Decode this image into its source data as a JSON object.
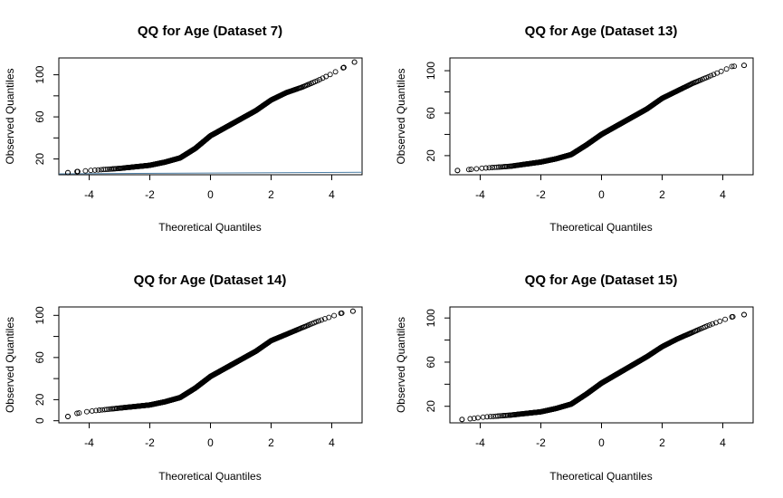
{
  "chart_data": [
    {
      "type": "scatter",
      "title": "QQ for Age (Dataset 7)",
      "xlabel": "Theoretical Quantiles",
      "ylabel": "Observed Quantiles",
      "xlim": [
        -5,
        5
      ],
      "ylim": [
        5,
        116
      ],
      "xticks": [
        -4,
        -2,
        0,
        2,
        4
      ],
      "yticks": [
        20,
        60,
        100
      ],
      "ytick_labels": [
        "20",
        "60",
        "100"
      ],
      "yminor": [
        40,
        80
      ],
      "anchors_x": [
        -4.7,
        -4.4,
        -4.0,
        -3.0,
        -2.0,
        -1.5,
        -1.0,
        -0.5,
        0.0,
        0.5,
        1.0,
        1.5,
        2.0,
        2.5,
        3.0,
        3.5,
        4.0,
        4.4,
        4.75
      ],
      "anchors_y": [
        7,
        8,
        9,
        11,
        14,
        17,
        21,
        30,
        42,
        50,
        58,
        66,
        76,
        83,
        88,
        94,
        101,
        107,
        112
      ],
      "grid": false,
      "note_line": {
        "x": [
          -5,
          5
        ],
        "y": [
          5,
          6.5
        ],
        "color": "#4d7fa6"
      }
    },
    {
      "type": "scatter",
      "title": "QQ for Age (Dataset 13)",
      "xlabel": "Theoretical Quantiles",
      "ylabel": "Observed Quantiles",
      "xlim": [
        -5,
        5
      ],
      "ylim": [
        2,
        112
      ],
      "xticks": [
        -4,
        -2,
        0,
        2,
        4
      ],
      "yticks": [
        20,
        60,
        100
      ],
      "ytick_labels": [
        "20",
        "60",
        "100"
      ],
      "yminor": [
        40,
        80
      ],
      "anchors_x": [
        -4.75,
        -4.3,
        -4.0,
        -3.0,
        -2.0,
        -1.5,
        -1.0,
        -0.5,
        0.0,
        0.5,
        1.0,
        1.5,
        2.0,
        2.5,
        3.0,
        3.5,
        4.0,
        4.3,
        4.7
      ],
      "anchors_y": [
        6,
        7,
        8,
        10,
        14,
        17,
        21,
        30,
        40,
        48,
        56,
        64,
        74,
        81,
        88,
        94,
        100,
        104,
        105
      ],
      "grid": false
    },
    {
      "type": "scatter",
      "title": "QQ for Age (Dataset 14)",
      "xlabel": "Theoretical Quantiles",
      "ylabel": "Observed Quantiles",
      "xlim": [
        -5,
        5
      ],
      "ylim": [
        -2,
        108
      ],
      "xticks": [
        -4,
        -2,
        0,
        2,
        4
      ],
      "yticks": [
        0,
        20,
        60,
        100
      ],
      "ytick_labels": [
        "0",
        "20",
        "60",
        "100"
      ],
      "yminor": [
        40,
        80
      ],
      "anchors_x": [
        -4.7,
        -4.4,
        -4.0,
        -3.0,
        -2.0,
        -1.5,
        -1.0,
        -0.5,
        0.0,
        0.5,
        1.0,
        1.5,
        2.0,
        2.5,
        3.0,
        3.5,
        4.0,
        4.3,
        4.7
      ],
      "anchors_y": [
        4,
        7,
        9,
        12,
        15,
        18,
        22,
        31,
        42,
        50,
        58,
        66,
        76,
        82,
        88,
        94,
        99,
        102,
        104
      ],
      "grid": false
    },
    {
      "type": "scatter",
      "title": "QQ for Age (Dataset 15)",
      "xlabel": "Theoretical Quantiles",
      "ylabel": "Observed Quantiles",
      "xlim": [
        -5,
        5
      ],
      "ylim": [
        5,
        110
      ],
      "xticks": [
        -4,
        -2,
        0,
        2,
        4
      ],
      "yticks": [
        20,
        60,
        100
      ],
      "ytick_labels": [
        "20",
        "60",
        "100"
      ],
      "yminor": [
        40,
        80
      ],
      "anchors_x": [
        -4.6,
        -4.2,
        -4.0,
        -3.0,
        -2.0,
        -1.5,
        -1.0,
        -0.5,
        0.0,
        0.5,
        1.0,
        1.5,
        2.0,
        2.5,
        3.0,
        3.5,
        4.0,
        4.3,
        4.7
      ],
      "anchors_y": [
        8,
        9,
        10,
        12,
        15,
        18,
        22,
        31,
        41,
        49,
        57,
        65,
        74,
        81,
        87,
        93,
        98,
        101,
        103
      ],
      "grid": false
    }
  ]
}
